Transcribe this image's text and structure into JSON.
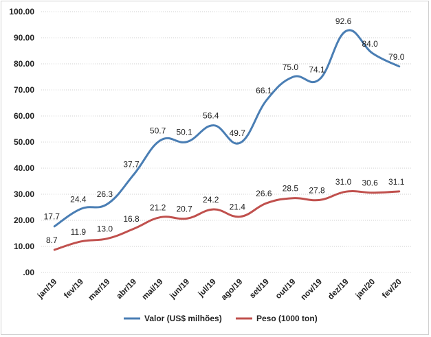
{
  "chart_data": {
    "type": "line",
    "categories": [
      "jan/19",
      "fev/19",
      "mar/19",
      "abr/19",
      "mai/19",
      "jun/19",
      "jul/19",
      "ago/19",
      "set/19",
      "out/19",
      "nov/19",
      "dez/19",
      "jan/20",
      "fev/20"
    ],
    "series": [
      {
        "name": "Valor (US$ milhões)",
        "color": "#4a7eb4",
        "values": [
          17.7,
          24.4,
          26.3,
          37.7,
          50.7,
          50.1,
          56.4,
          49.7,
          66.1,
          75.0,
          74.1,
          92.6,
          84.0,
          79.0
        ],
        "labels": [
          "17.7",
          "24.4",
          "26.3",
          "37.7",
          "50.7",
          "50.1",
          "56.4",
          "49.7",
          "66.1",
          "75.0",
          "74.1",
          "92.6",
          "84.0",
          "79.0"
        ]
      },
      {
        "name": "Peso (1000 ton)",
        "color": "#c0504d",
        "values": [
          8.7,
          11.9,
          13.0,
          16.8,
          21.2,
          20.7,
          24.2,
          21.4,
          26.6,
          28.5,
          27.8,
          31.0,
          30.6,
          31.1
        ],
        "labels": [
          "8.7",
          "11.9",
          "13.0",
          "16.8",
          "21.2",
          "20.7",
          "24.2",
          "21.4",
          "26.6",
          "28.5",
          "27.8",
          "31.0",
          "30.6",
          "31.1"
        ]
      }
    ],
    "yticks": [
      ".00",
      "10.00",
      "20.00",
      "30.00",
      "40.00",
      "50.00",
      "60.00",
      "70.00",
      "80.00",
      "90.00",
      "100.00"
    ],
    "ylim": [
      0,
      100
    ],
    "grid": true,
    "legend_position": "bottom"
  }
}
